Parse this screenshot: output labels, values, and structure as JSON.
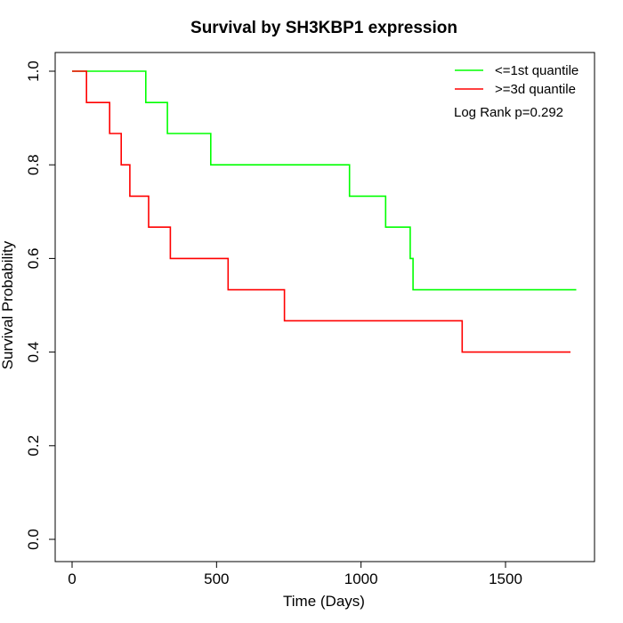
{
  "chart_data": {
    "type": "line",
    "title": "Survival by SH3KBP1 expression",
    "xlabel": "Time (Days)",
    "ylabel": "Survival Probability",
    "xlim": [
      0,
      1800
    ],
    "ylim": [
      0,
      1.0
    ],
    "x_ticks": [
      0,
      500,
      1000,
      1500
    ],
    "x_tick_labels": [
      "0",
      "500",
      "1000",
      "1500"
    ],
    "y_ticks": [
      0,
      0.2,
      0.4,
      0.6,
      0.8,
      1.0
    ],
    "y_tick_labels": [
      "0.0",
      "0.2",
      "0.4",
      "0.6",
      "0.8",
      "1.0"
    ],
    "grid": false,
    "legend_position": "top-right",
    "annotation": "Log Rank p=0.292",
    "series": [
      {
        "name": "<=1st quantile",
        "color": "#00ff00",
        "step": true,
        "points": [
          [
            0,
            1.0
          ],
          [
            255,
            1.0
          ],
          [
            255,
            0.933
          ],
          [
            330,
            0.933
          ],
          [
            330,
            0.867
          ],
          [
            480,
            0.867
          ],
          [
            480,
            0.8
          ],
          [
            960,
            0.8
          ],
          [
            960,
            0.733
          ],
          [
            1085,
            0.733
          ],
          [
            1085,
            0.667
          ],
          [
            1170,
            0.667
          ],
          [
            1170,
            0.6
          ],
          [
            1180,
            0.6
          ],
          [
            1180,
            0.533
          ],
          [
            1745,
            0.533
          ]
        ]
      },
      {
        "name": ">=3d quantile",
        "color": "#ff0000",
        "step": true,
        "points": [
          [
            0,
            1.0
          ],
          [
            50,
            1.0
          ],
          [
            50,
            0.933
          ],
          [
            130,
            0.933
          ],
          [
            130,
            0.867
          ],
          [
            170,
            0.867
          ],
          [
            170,
            0.8
          ],
          [
            200,
            0.8
          ],
          [
            200,
            0.733
          ],
          [
            265,
            0.733
          ],
          [
            265,
            0.667
          ],
          [
            340,
            0.667
          ],
          [
            340,
            0.6
          ],
          [
            540,
            0.6
          ],
          [
            540,
            0.533
          ],
          [
            735,
            0.533
          ],
          [
            735,
            0.467
          ],
          [
            1350,
            0.467
          ],
          [
            1350,
            0.4
          ],
          [
            1725,
            0.4
          ]
        ]
      }
    ]
  }
}
